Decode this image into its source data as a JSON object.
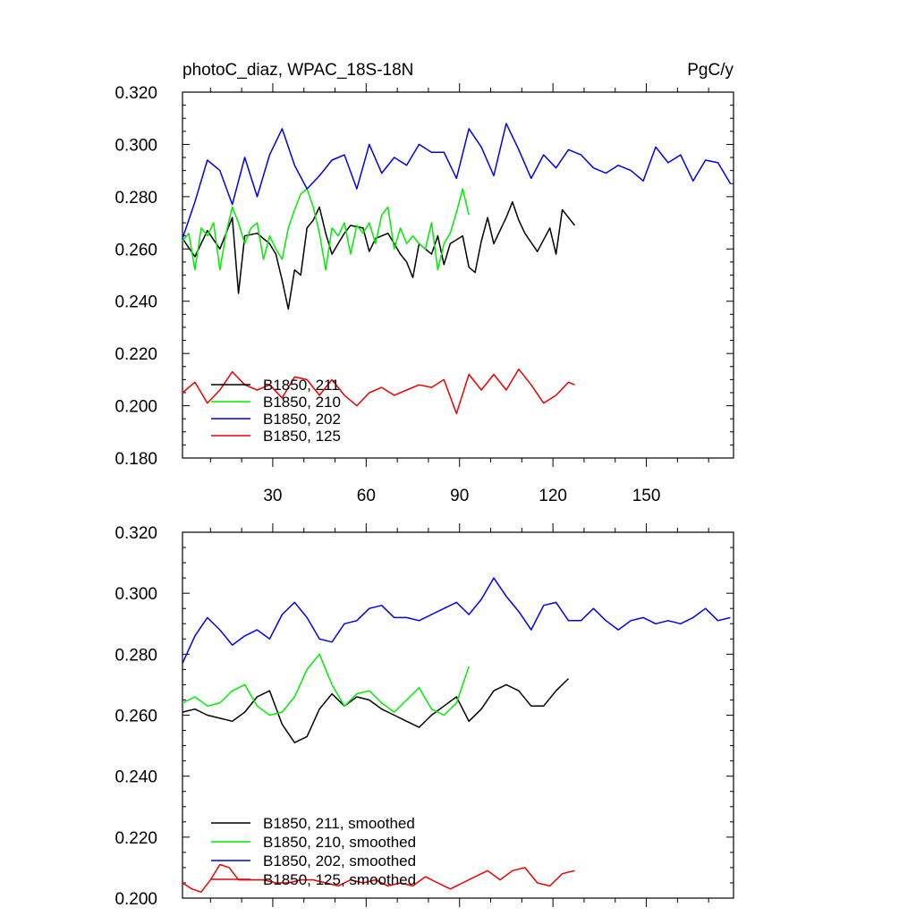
{
  "chart_data": [
    {
      "type": "line",
      "title": "photoC_diaz, WPAC_18S-18N",
      "title_right": "PgC/y",
      "xlabel": "",
      "ylabel": "",
      "xlim": [
        1,
        178
      ],
      "ylim": [
        0.18,
        0.32
      ],
      "yticks": [
        0.18,
        0.2,
        0.22,
        0.24,
        0.26,
        0.28,
        0.3,
        0.32
      ],
      "ytick_labels": [
        "0.180",
        "0.200",
        "0.220",
        "0.240",
        "0.260",
        "0.280",
        "0.300",
        "0.320"
      ],
      "xticks": [
        30,
        60,
        90,
        120,
        150
      ],
      "xtick_labels": [
        "30",
        "60",
        "90",
        "120",
        "150"
      ],
      "grid": false,
      "legend_position": "bottom-left",
      "series": [
        {
          "name": "B1850, 211",
          "color": "#000000",
          "x": [
            1,
            5,
            9,
            13,
            17,
            19,
            21,
            25,
            29,
            31,
            33,
            35,
            37,
            39,
            41,
            43,
            45,
            47,
            49,
            51,
            53,
            55,
            59,
            61,
            63,
            67,
            69,
            71,
            73,
            75,
            77,
            81,
            83,
            85,
            87,
            91,
            93,
            95,
            97,
            99,
            101,
            105,
            107,
            109,
            111,
            115,
            119,
            121,
            123,
            127
          ],
          "y": [
            0.264,
            0.257,
            0.267,
            0.26,
            0.272,
            0.243,
            0.265,
            0.266,
            0.262,
            0.258,
            0.248,
            0.237,
            0.252,
            0.25,
            0.268,
            0.271,
            0.276,
            0.266,
            0.258,
            0.262,
            0.266,
            0.269,
            0.268,
            0.259,
            0.264,
            0.266,
            0.262,
            0.258,
            0.255,
            0.249,
            0.262,
            0.258,
            0.265,
            0.254,
            0.262,
            0.265,
            0.253,
            0.251,
            0.263,
            0.272,
            0.262,
            0.272,
            0.278,
            0.271,
            0.266,
            0.259,
            0.268,
            0.258,
            0.275,
            0.269
          ]
        },
        {
          "name": "B1850, 210",
          "color": "#00ee00",
          "x": [
            1,
            3,
            5,
            7,
            9,
            11,
            13,
            15,
            17,
            19,
            21,
            23,
            25,
            27,
            29,
            31,
            33,
            35,
            37,
            39,
            41,
            43,
            45,
            47,
            49,
            51,
            53,
            55,
            57,
            59,
            61,
            63,
            65,
            67,
            69,
            71,
            73,
            75,
            77,
            79,
            81,
            83,
            85,
            87,
            89,
            91,
            93
          ],
          "y": [
            0.263,
            0.266,
            0.252,
            0.268,
            0.265,
            0.27,
            0.252,
            0.266,
            0.276,
            0.27,
            0.262,
            0.268,
            0.27,
            0.256,
            0.265,
            0.26,
            0.256,
            0.268,
            0.275,
            0.281,
            0.283,
            0.276,
            0.266,
            0.252,
            0.268,
            0.265,
            0.27,
            0.258,
            0.269,
            0.266,
            0.27,
            0.262,
            0.273,
            0.276,
            0.26,
            0.268,
            0.262,
            0.265,
            0.262,
            0.26,
            0.27,
            0.252,
            0.262,
            0.266,
            0.274,
            0.283,
            0.273
          ]
        },
        {
          "name": "B1850, 202",
          "color": "#0000ee",
          "x": [
            1,
            5,
            9,
            13,
            17,
            21,
            25,
            29,
            33,
            37,
            41,
            45,
            49,
            53,
            57,
            61,
            65,
            69,
            73,
            77,
            81,
            85,
            89,
            93,
            97,
            101,
            105,
            109,
            113,
            117,
            121,
            125,
            129,
            133,
            137,
            141,
            145,
            149,
            153,
            157,
            161,
            165,
            169,
            173,
            177
          ],
          "y": [
            0.264,
            0.278,
            0.294,
            0.29,
            0.277,
            0.295,
            0.28,
            0.296,
            0.306,
            0.292,
            0.283,
            0.288,
            0.294,
            0.296,
            0.283,
            0.3,
            0.289,
            0.295,
            0.292,
            0.3,
            0.297,
            0.297,
            0.287,
            0.306,
            0.299,
            0.288,
            0.308,
            0.298,
            0.287,
            0.296,
            0.291,
            0.298,
            0.296,
            0.291,
            0.289,
            0.292,
            0.29,
            0.286,
            0.299,
            0.293,
            0.296,
            0.286,
            0.294,
            0.293,
            0.285
          ]
        },
        {
          "name": "B1850, 125",
          "color": "#ee0000",
          "x": [
            1,
            5,
            9,
            13,
            17,
            21,
            25,
            29,
            33,
            37,
            41,
            45,
            49,
            53,
            57,
            61,
            65,
            69,
            73,
            77,
            81,
            85,
            89,
            93,
            97,
            101,
            105,
            109,
            113,
            117,
            121,
            125,
            127
          ],
          "y": [
            0.205,
            0.209,
            0.201,
            0.206,
            0.213,
            0.208,
            0.206,
            0.208,
            0.203,
            0.211,
            0.21,
            0.204,
            0.21,
            0.204,
            0.2,
            0.205,
            0.207,
            0.204,
            0.206,
            0.208,
            0.207,
            0.21,
            0.197,
            0.212,
            0.206,
            0.212,
            0.206,
            0.214,
            0.208,
            0.201,
            0.204,
            0.209,
            0.208
          ]
        }
      ]
    },
    {
      "type": "line",
      "title": "",
      "xlabel": "",
      "ylabel": "",
      "xlim": [
        1,
        178
      ],
      "ylim": [
        0.2,
        0.32
      ],
      "yticks": [
        0.2,
        0.22,
        0.24,
        0.26,
        0.28,
        0.3,
        0.32
      ],
      "ytick_labels": [
        "0.200",
        "0.220",
        "0.240",
        "0.260",
        "0.280",
        "0.300",
        "0.320"
      ],
      "xticks": [
        30,
        60,
        90,
        120,
        150
      ],
      "xtick_labels": [
        "",
        "",
        "",
        "",
        ""
      ],
      "grid": false,
      "legend_position": "bottom-left",
      "series": [
        {
          "name": "B1850, 211, smoothed",
          "color": "#000000",
          "x": [
            1,
            5,
            9,
            13,
            17,
            21,
            25,
            29,
            33,
            37,
            41,
            45,
            49,
            53,
            57,
            61,
            65,
            69,
            73,
            77,
            81,
            85,
            89,
            93,
            97,
            101,
            105,
            109,
            113,
            117,
            121,
            125
          ],
          "y": [
            0.261,
            0.262,
            0.26,
            0.259,
            0.258,
            0.261,
            0.266,
            0.268,
            0.257,
            0.251,
            0.253,
            0.262,
            0.267,
            0.263,
            0.266,
            0.265,
            0.262,
            0.26,
            0.258,
            0.256,
            0.26,
            0.263,
            0.266,
            0.258,
            0.262,
            0.268,
            0.27,
            0.268,
            0.263,
            0.263,
            0.268,
            0.272
          ]
        },
        {
          "name": "B1850, 210, smoothed",
          "color": "#00ee00",
          "x": [
            1,
            5,
            9,
            13,
            17,
            21,
            25,
            29,
            33,
            37,
            41,
            45,
            49,
            53,
            57,
            61,
            65,
            69,
            73,
            77,
            81,
            85,
            89,
            93
          ],
          "y": [
            0.264,
            0.266,
            0.263,
            0.264,
            0.268,
            0.27,
            0.263,
            0.26,
            0.261,
            0.266,
            0.275,
            0.28,
            0.27,
            0.263,
            0.267,
            0.268,
            0.264,
            0.261,
            0.265,
            0.269,
            0.262,
            0.26,
            0.264,
            0.276
          ]
        },
        {
          "name": "B1850, 202, smoothed",
          "color": "#0000ee",
          "x": [
            1,
            5,
            9,
            13,
            17,
            21,
            25,
            29,
            33,
            37,
            41,
            45,
            49,
            53,
            57,
            61,
            65,
            69,
            73,
            77,
            81,
            85,
            89,
            93,
            97,
            101,
            105,
            109,
            113,
            117,
            121,
            125,
            129,
            133,
            137,
            141,
            145,
            149,
            153,
            157,
            161,
            165,
            169,
            173,
            177
          ],
          "y": [
            0.277,
            0.286,
            0.292,
            0.288,
            0.283,
            0.286,
            0.288,
            0.285,
            0.293,
            0.297,
            0.292,
            0.285,
            0.284,
            0.29,
            0.291,
            0.295,
            0.296,
            0.292,
            0.292,
            0.291,
            0.293,
            0.295,
            0.297,
            0.293,
            0.298,
            0.305,
            0.299,
            0.294,
            0.288,
            0.296,
            0.297,
            0.291,
            0.291,
            0.295,
            0.291,
            0.288,
            0.291,
            0.292,
            0.29,
            0.291,
            0.29,
            0.292,
            0.295,
            0.291,
            0.292
          ]
        },
        {
          "name": "B1850, 125, smoothed",
          "color": "#ee0000",
          "x": [
            1,
            4,
            7,
            10,
            13,
            16,
            19,
            23,
            27,
            31,
            35,
            39,
            43,
            47,
            51,
            55,
            59,
            63,
            67,
            71,
            75,
            79,
            83,
            87,
            91,
            95,
            99,
            103,
            107,
            111,
            115,
            119,
            123,
            127
          ],
          "y": [
            0.205,
            0.203,
            0.202,
            0.206,
            0.211,
            0.21,
            0.206,
            0.206,
            0.206,
            0.205,
            0.205,
            0.206,
            0.206,
            0.205,
            0.204,
            0.206,
            0.205,
            0.206,
            0.204,
            0.205,
            0.204,
            0.207,
            0.205,
            0.203,
            0.205,
            0.207,
            0.209,
            0.206,
            0.209,
            0.21,
            0.205,
            0.204,
            0.208,
            0.209
          ]
        }
      ]
    }
  ]
}
